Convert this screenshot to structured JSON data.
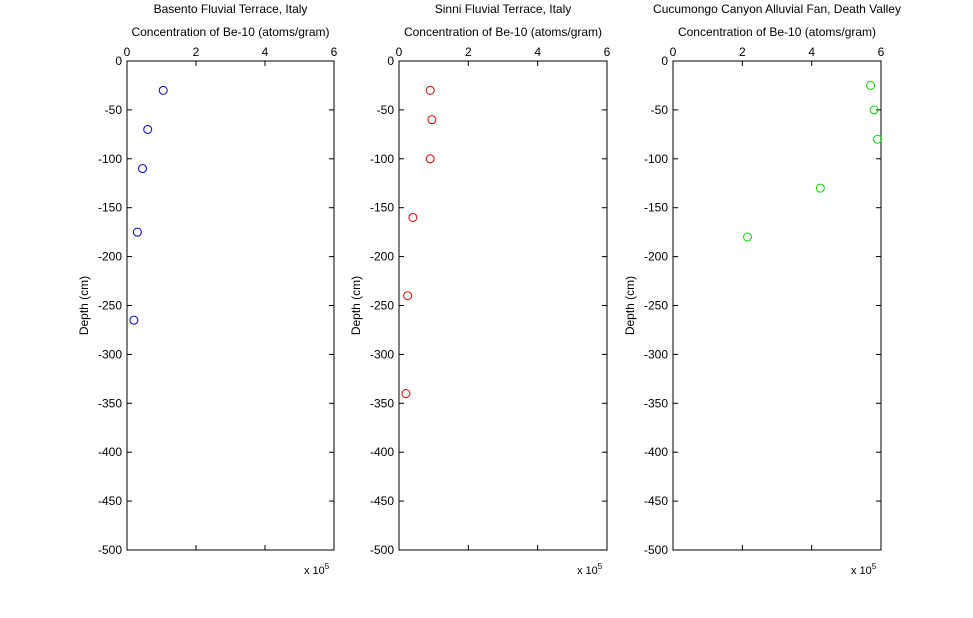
{
  "chart_data": [
    {
      "type": "scatter",
      "title": "Basento Fluvial Terrace, Italy",
      "xlabel": "Concentration of Be-10 (atoms/gram)",
      "ylabel": "Depth (cm)",
      "x_exponent_base": "x 10",
      "x_exponent_power": "5",
      "xlim": [
        0,
        6
      ],
      "ylim": [
        -500,
        0
      ],
      "x_ticks": [
        0,
        2,
        4,
        6
      ],
      "y_ticks": [
        0,
        -50,
        -100,
        -150,
        -200,
        -250,
        -300,
        -350,
        -400,
        -450,
        -500
      ],
      "x_axis_position": "top",
      "grid": false,
      "marker": "circle-open",
      "color": "#0000cc",
      "points": [
        {
          "x": 1.05,
          "y": -30
        },
        {
          "x": 0.6,
          "y": -70
        },
        {
          "x": 0.45,
          "y": -110
        },
        {
          "x": 0.3,
          "y": -175
        },
        {
          "x": 0.2,
          "y": -265
        }
      ]
    },
    {
      "type": "scatter",
      "title": "Sinni Fluvial Terrace, Italy",
      "xlabel": "Concentration of Be-10 (atoms/gram)",
      "ylabel": "Depth (cm)",
      "x_exponent_base": "x 10",
      "x_exponent_power": "5",
      "xlim": [
        0,
        6
      ],
      "ylim": [
        -500,
        0
      ],
      "x_ticks": [
        0,
        2,
        4,
        6
      ],
      "y_ticks": [
        0,
        -50,
        -100,
        -150,
        -200,
        -250,
        -300,
        -350,
        -400,
        -450,
        -500
      ],
      "x_axis_position": "top",
      "grid": false,
      "marker": "circle-open",
      "color": "#dd0000",
      "points": [
        {
          "x": 0.9,
          "y": -30
        },
        {
          "x": 0.95,
          "y": -60
        },
        {
          "x": 0.9,
          "y": -100
        },
        {
          "x": 0.4,
          "y": -160
        },
        {
          "x": 0.25,
          "y": -240
        },
        {
          "x": 0.2,
          "y": -340
        }
      ]
    },
    {
      "type": "scatter",
      "title": "Cucumongo Canyon Alluvial Fan, Death Valley",
      "xlabel": "Concentration of Be-10 (atoms/gram)",
      "ylabel": "Depth (cm)",
      "x_exponent_base": "x 10",
      "x_exponent_power": "5",
      "xlim": [
        0,
        6
      ],
      "ylim": [
        -500,
        0
      ],
      "x_ticks": [
        0,
        2,
        4,
        6
      ],
      "y_ticks": [
        0,
        -50,
        -100,
        -150,
        -200,
        -250,
        -300,
        -350,
        -400,
        -450,
        -500
      ],
      "x_axis_position": "top",
      "grid": false,
      "marker": "circle-open",
      "color": "#00dd00",
      "points": [
        {
          "x": 5.7,
          "y": -25
        },
        {
          "x": 5.8,
          "y": -50
        },
        {
          "x": 5.9,
          "y": -80
        },
        {
          "x": 4.25,
          "y": -130
        },
        {
          "x": 2.15,
          "y": -180
        }
      ]
    }
  ]
}
